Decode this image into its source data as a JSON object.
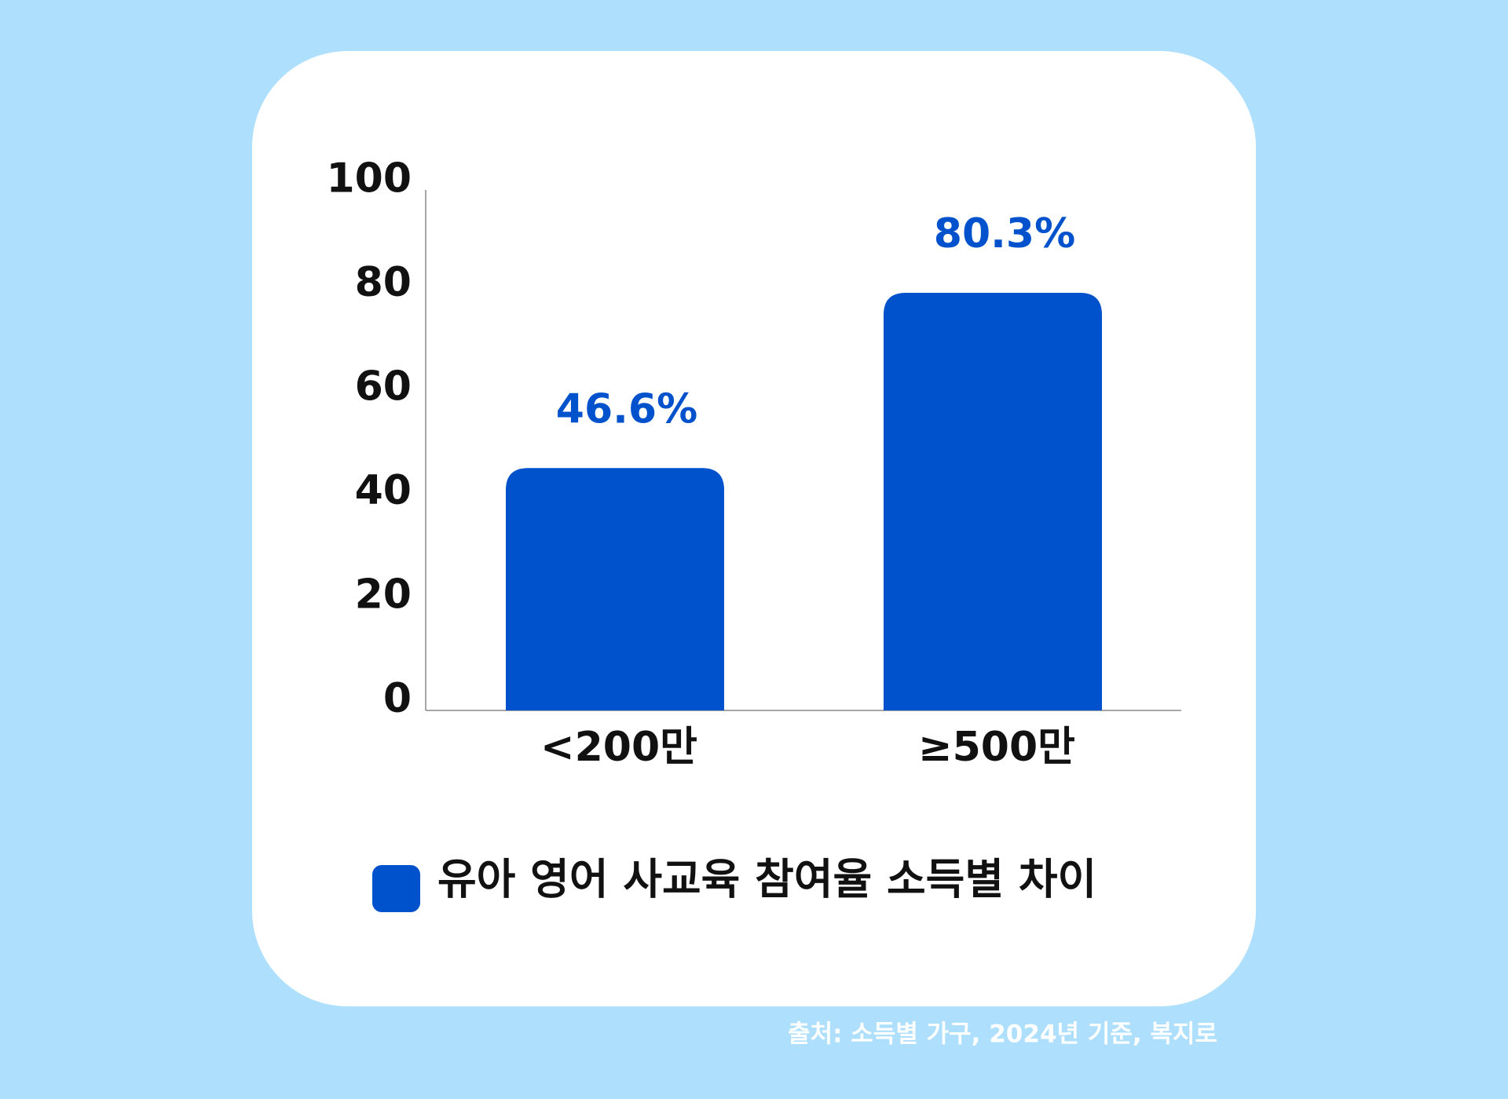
{
  "chart_data": {
    "type": "bar",
    "categories": [
      "<200만",
      "≥500만"
    ],
    "series": [
      {
        "name": "유아 영어 사교육 참여율 소득별 차이",
        "color": "#0052cc",
        "values": [
          46.6,
          80.3
        ],
        "value_labels": [
          "46.6%",
          "80.3%"
        ]
      }
    ],
    "ylim": [
      0,
      100
    ],
    "yticks": [
      0,
      20,
      40,
      60,
      80,
      100
    ],
    "grid": false,
    "source": "출처: 소득별 가구, 2024년 기준, 복지로"
  }
}
